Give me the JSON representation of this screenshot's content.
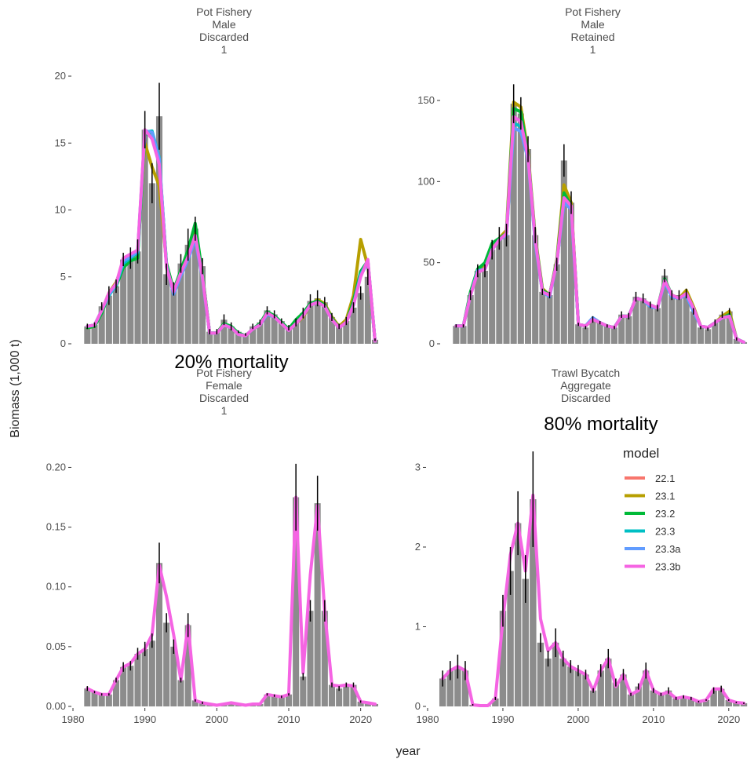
{
  "figure": {
    "ylabel": "Biomass (1,000 t)",
    "xlabel": "year",
    "annotations": [
      "20% mortality",
      "80% mortality"
    ],
    "legend": {
      "title": "model",
      "position": "right-bottom-panel",
      "items": [
        {
          "label": "22.1",
          "color": "#F8766D"
        },
        {
          "label": "23.1",
          "color": "#B79F00"
        },
        {
          "label": "23.2",
          "color": "#00BA38"
        },
        {
          "label": "23.3",
          "color": "#00BFC4"
        },
        {
          "label": "23.3a",
          "color": "#619CFF"
        },
        {
          "label": "23.3b",
          "color": "#F564E3"
        }
      ]
    }
  },
  "chart_data": [
    {
      "type": "bar",
      "title_lines": [
        "Pot Fishery",
        "Male",
        "Discarded",
        "1"
      ],
      "xlim": [
        1980,
        2022
      ],
      "ylim": [
        0,
        20
      ],
      "yticks": [
        0,
        5,
        10,
        15,
        20
      ],
      "xticks": [],
      "years": [
        1982,
        1983,
        1984,
        1985,
        1986,
        1987,
        1988,
        1989,
        1990,
        1991,
        1992,
        1993,
        1994,
        1995,
        1996,
        1997,
        1998,
        1999,
        2000,
        2001,
        2002,
        2003,
        2004,
        2005,
        2006,
        2007,
        2008,
        2009,
        2010,
        2011,
        2012,
        2013,
        2014,
        2015,
        2016,
        2017,
        2018,
        2019,
        2020,
        2021,
        2022
      ],
      "observed": [
        1.3,
        1.4,
        2.8,
        3.6,
        4.3,
        6.3,
        6.4,
        6.9,
        16.0,
        12.0,
        17.0,
        5.2,
        4.1,
        6.0,
        7.4,
        8.6,
        5.8,
        0.9,
        0.9,
        1.8,
        1.3,
        0.9,
        0.7,
        1.3,
        1.6,
        2.5,
        2.2,
        1.7,
        1.2,
        1.6,
        2.3,
        3.2,
        3.4,
        3.1,
        2.0,
        1.3,
        1.7,
        2.7,
        3.8,
        5.0,
        0.3
      ],
      "error": [
        0.2,
        0.2,
        0.3,
        0.7,
        0.5,
        0.5,
        0.8,
        0.9,
        1.4,
        1.5,
        2.5,
        0.8,
        0.5,
        0.7,
        1.2,
        0.9,
        0.6,
        0.2,
        0.2,
        0.4,
        0.3,
        0.1,
        0.1,
        0.2,
        0.2,
        0.3,
        0.3,
        0.2,
        0.2,
        0.3,
        0.4,
        0.5,
        0.6,
        0.4,
        0.3,
        0.2,
        0.3,
        0.4,
        0.5,
        0.6,
        0.1
      ],
      "series": [
        {
          "name": "23.1",
          "values": [
            1.2,
            1.3,
            2.4,
            3.8,
            4.6,
            6.0,
            6.4,
            6.7,
            15.0,
            13.2,
            11.8,
            6.0,
            4.0,
            5.4,
            6.7,
            8.3,
            5.2,
            0.8,
            0.8,
            1.5,
            1.2,
            0.7,
            0.6,
            1.1,
            1.4,
            2.3,
            2.0,
            1.5,
            1.0,
            1.5,
            2.0,
            2.9,
            3.3,
            3.0,
            2.0,
            1.3,
            1.8,
            3.6,
            7.8,
            5.8,
            0.2
          ]
        },
        {
          "name": "23.2",
          "values": [
            1.2,
            1.3,
            2.3,
            3.7,
            4.3,
            5.7,
            6.2,
            6.4,
            15.6,
            15.8,
            13.6,
            6.0,
            4.0,
            5.5,
            7.0,
            9.0,
            5.2,
            0.8,
            0.8,
            1.5,
            1.3,
            0.8,
            0.6,
            1.1,
            1.5,
            2.4,
            2.1,
            1.6,
            1.1,
            1.8,
            2.3,
            3.0,
            3.2,
            2.9,
            1.9,
            1.2,
            1.6,
            3.2,
            5.4,
            6.2,
            0.2
          ]
        },
        {
          "name": "23.3",
          "values": [
            1.3,
            1.4,
            2.5,
            3.6,
            4.4,
            6.0,
            6.4,
            6.8,
            15.8,
            15.9,
            13.9,
            5.8,
            3.8,
            5.2,
            6.4,
            8.0,
            5.0,
            0.8,
            0.8,
            1.4,
            1.2,
            0.7,
            0.6,
            1.1,
            1.4,
            2.2,
            2.0,
            1.5,
            1.0,
            1.5,
            2.1,
            2.9,
            3.1,
            2.8,
            1.8,
            1.2,
            1.6,
            2.9,
            5.2,
            6.2,
            0.2
          ]
        },
        {
          "name": "23.3a",
          "values": [
            1.3,
            1.4,
            2.5,
            3.7,
            4.4,
            6.2,
            6.5,
            6.9,
            15.9,
            15.8,
            13.8,
            5.8,
            3.7,
            5.1,
            6.3,
            7.8,
            4.9,
            0.8,
            0.8,
            1.4,
            1.2,
            0.7,
            0.6,
            1.1,
            1.4,
            2.2,
            2.0,
            1.5,
            1.0,
            1.5,
            2.1,
            2.9,
            3.1,
            2.8,
            1.8,
            1.2,
            1.6,
            2.9,
            5.1,
            6.1,
            0.2
          ]
        },
        {
          "name": "23.3b",
          "values": [
            1.3,
            1.4,
            2.5,
            3.8,
            4.5,
            6.4,
            6.7,
            7.0,
            16.0,
            15.3,
            13.4,
            5.7,
            3.9,
            5.3,
            6.5,
            8.1,
            5.0,
            0.8,
            0.8,
            1.4,
            1.2,
            0.7,
            0.6,
            1.1,
            1.4,
            2.3,
            2.0,
            1.5,
            1.0,
            1.5,
            2.1,
            2.9,
            3.1,
            2.8,
            1.8,
            1.2,
            1.6,
            2.9,
            5.0,
            6.3,
            0.2
          ]
        }
      ]
    },
    {
      "type": "bar",
      "title_lines": [
        "Pot Fishery",
        "Male",
        "Retained",
        "1"
      ],
      "xlim": [
        1980,
        2022
      ],
      "ylim": [
        0,
        165
      ],
      "yticks": [
        0,
        50,
        100,
        150
      ],
      "xticks": [],
      "years": [
        1982,
        1983,
        1984,
        1985,
        1986,
        1987,
        1988,
        1989,
        1990,
        1991,
        1992,
        1993,
        1994,
        1995,
        1996,
        1997,
        1998,
        1999,
        2000,
        2001,
        2002,
        2003,
        2004,
        2005,
        2006,
        2007,
        2008,
        2009,
        2010,
        2011,
        2012,
        2013,
        2014,
        2015,
        2016,
        2017,
        2018,
        2019,
        2020,
        2021,
        2022
      ],
      "observed": [
        11,
        11,
        30,
        45,
        45,
        58,
        65,
        67,
        148,
        142,
        120,
        67,
        32,
        30,
        49,
        113,
        87,
        12,
        10,
        15,
        13,
        11,
        10,
        18,
        17,
        29,
        28,
        24,
        22,
        42,
        30,
        30,
        31,
        20,
        10,
        9,
        13,
        18,
        20,
        3,
        1
      ],
      "error": [
        1,
        1,
        3,
        4,
        4,
        6,
        7,
        7,
        12,
        10,
        8,
        5,
        2,
        2,
        4,
        10,
        7,
        1,
        1,
        2,
        1,
        1,
        1,
        2,
        2,
        3,
        3,
        2,
        2,
        4,
        3,
        3,
        3,
        2,
        1,
        1,
        2,
        2,
        2,
        1,
        0
      ],
      "series": [
        {
          "name": "23.1",
          "values": [
            11,
            11,
            30,
            46,
            48,
            60,
            65,
            70,
            149,
            146,
            118,
            66,
            34,
            30,
            52,
            98,
            87,
            12,
            11,
            15,
            13,
            11,
            10,
            17,
            17,
            28,
            27,
            24,
            22,
            39,
            30,
            28,
            33,
            23,
            11,
            10,
            13,
            17,
            20,
            3,
            1
          ]
        },
        {
          "name": "23.2",
          "values": [
            11,
            11,
            32,
            46,
            50,
            62,
            65,
            68,
            145,
            143,
            116,
            65,
            33,
            30,
            51,
            93,
            85,
            12,
            11,
            15,
            13,
            11,
            10,
            17,
            17,
            28,
            27,
            24,
            22,
            40,
            30,
            28,
            31,
            22,
            11,
            10,
            13,
            16,
            18,
            3,
            1
          ]
        },
        {
          "name": "23.3",
          "values": [
            11,
            11,
            30,
            45,
            46,
            58,
            64,
            68,
            136,
            134,
            115,
            63,
            32,
            30,
            50,
            88,
            84,
            12,
            11,
            16,
            13,
            11,
            10,
            17,
            17,
            28,
            27,
            23,
            22,
            38,
            29,
            28,
            30,
            20,
            11,
            10,
            13,
            16,
            17,
            3,
            1
          ]
        },
        {
          "name": "23.3a",
          "values": [
            11,
            11,
            30,
            45,
            46,
            58,
            64,
            67,
            133,
            131,
            114,
            62,
            32,
            29,
            50,
            87,
            83,
            12,
            11,
            16,
            13,
            11,
            10,
            17,
            17,
            28,
            27,
            23,
            22,
            38,
            29,
            28,
            30,
            20,
            11,
            10,
            13,
            16,
            17,
            3,
            1
          ]
        },
        {
          "name": "23.3b",
          "values": [
            11,
            11,
            30,
            44,
            46,
            58,
            64,
            68,
            140,
            137,
            115,
            64,
            32,
            30,
            50,
            90,
            85,
            12,
            11,
            15,
            13,
            11,
            10,
            17,
            17,
            28,
            27,
            24,
            22,
            39,
            30,
            28,
            31,
            22,
            11,
            10,
            13,
            16,
            17,
            3,
            1
          ]
        }
      ]
    },
    {
      "type": "bar",
      "title_lines": [
        "Pot Fishery",
        "Female",
        "Discarded",
        "1"
      ],
      "xlim": [
        1980,
        2022
      ],
      "ylim": [
        0,
        0.22
      ],
      "yticks": [
        0.0,
        0.05,
        0.1,
        0.15,
        0.2
      ],
      "ytick_labels": [
        "0.00",
        "0.05",
        "0.10",
        "0.15",
        "0.20"
      ],
      "xticks": [
        1980,
        1990,
        2000,
        2010,
        2020
      ],
      "years": [
        1982,
        1983,
        1984,
        1985,
        1986,
        1987,
        1988,
        1989,
        1990,
        1991,
        1992,
        1993,
        1994,
        1995,
        1996,
        1997,
        1998,
        1999,
        2000,
        2001,
        2002,
        2003,
        2004,
        2005,
        2006,
        2007,
        2008,
        2009,
        2010,
        2011,
        2012,
        2013,
        2014,
        2015,
        2016,
        2017,
        2018,
        2019,
        2020,
        2021,
        2022
      ],
      "observed": [
        0.015,
        0.012,
        0.01,
        0.01,
        0.022,
        0.033,
        0.034,
        0.044,
        0.048,
        0.055,
        0.12,
        0.07,
        0.05,
        0.022,
        0.068,
        0.005,
        0.003,
        0.002,
        0.001,
        0.002,
        0.003,
        0.002,
        0.001,
        0.002,
        0.002,
        0.01,
        0.009,
        0.008,
        0.01,
        0.175,
        0.025,
        0.08,
        0.17,
        0.08,
        0.018,
        0.015,
        0.018,
        0.018,
        0.004,
        0.003,
        0.002
      ],
      "error": [
        0.002,
        0.001,
        0.001,
        0.001,
        0.002,
        0.004,
        0.004,
        0.005,
        0.006,
        0.006,
        0.017,
        0.008,
        0.006,
        0.002,
        0.01,
        0.001,
        0.001,
        0.0,
        0.0,
        0.0,
        0.0,
        0.0,
        0.0,
        0.0,
        0.0,
        0.001,
        0.001,
        0.001,
        0.001,
        0.028,
        0.003,
        0.009,
        0.023,
        0.009,
        0.002,
        0.002,
        0.002,
        0.002,
        0.001,
        0.0,
        0.0
      ],
      "series": [
        {
          "name": "23.3b",
          "values": [
            0.015,
            0.012,
            0.01,
            0.01,
            0.022,
            0.033,
            0.036,
            0.044,
            0.048,
            0.06,
            0.118,
            0.092,
            0.06,
            0.022,
            0.068,
            0.005,
            0.003,
            0.002,
            0.001,
            0.002,
            0.003,
            0.002,
            0.001,
            0.002,
            0.002,
            0.01,
            0.009,
            0.008,
            0.01,
            0.175,
            0.028,
            0.11,
            0.168,
            0.08,
            0.018,
            0.017,
            0.018,
            0.017,
            0.004,
            0.003,
            0.002
          ]
        }
      ]
    },
    {
      "type": "bar",
      "title_lines": [
        "Trawl  Bycatch",
        "Aggregate",
        "Discarded"
      ],
      "xlim": [
        1980,
        2022
      ],
      "ylim": [
        0,
        3.3
      ],
      "yticks": [
        0,
        1,
        2,
        3
      ],
      "xticks": [
        1980,
        1990,
        2000,
        2010,
        2020
      ],
      "years": [
        1982,
        1983,
        1984,
        1985,
        1986,
        1987,
        1988,
        1989,
        1990,
        1991,
        1992,
        1993,
        1994,
        1995,
        1996,
        1997,
        1998,
        1999,
        2000,
        2001,
        2002,
        2003,
        2004,
        2005,
        2006,
        2007,
        2008,
        2009,
        2010,
        2011,
        2012,
        2013,
        2014,
        2015,
        2016,
        2017,
        2018,
        2019,
        2020,
        2021,
        2022
      ],
      "observed": [
        0.35,
        0.45,
        0.5,
        0.45,
        0.02,
        0.01,
        0.01,
        0.1,
        1.2,
        1.7,
        2.3,
        1.6,
        2.6,
        0.8,
        0.6,
        0.8,
        0.6,
        0.5,
        0.45,
        0.4,
        0.2,
        0.45,
        0.6,
        0.3,
        0.4,
        0.15,
        0.25,
        0.45,
        0.2,
        0.15,
        0.2,
        0.1,
        0.12,
        0.1,
        0.06,
        0.08,
        0.2,
        0.22,
        0.08,
        0.05,
        0.04
      ],
      "error": [
        0.1,
        0.12,
        0.15,
        0.12,
        0.01,
        0.0,
        0.0,
        0.02,
        0.2,
        0.3,
        0.4,
        0.3,
        0.6,
        0.12,
        0.1,
        0.18,
        0.1,
        0.08,
        0.07,
        0.06,
        0.03,
        0.08,
        0.12,
        0.05,
        0.07,
        0.02,
        0.04,
        0.1,
        0.03,
        0.02,
        0.04,
        0.02,
        0.02,
        0.02,
        0.01,
        0.01,
        0.04,
        0.04,
        0.01,
        0.01,
        0.01
      ],
      "series": [
        {
          "name": "23.3b",
          "values": [
            0.35,
            0.45,
            0.5,
            0.45,
            0.02,
            0.01,
            0.01,
            0.1,
            1.1,
            1.9,
            2.3,
            1.7,
            2.65,
            1.1,
            0.7,
            0.8,
            0.6,
            0.5,
            0.45,
            0.4,
            0.2,
            0.45,
            0.6,
            0.25,
            0.4,
            0.15,
            0.2,
            0.45,
            0.2,
            0.15,
            0.18,
            0.1,
            0.12,
            0.1,
            0.06,
            0.08,
            0.22,
            0.22,
            0.08,
            0.05,
            0.04
          ]
        }
      ]
    }
  ]
}
